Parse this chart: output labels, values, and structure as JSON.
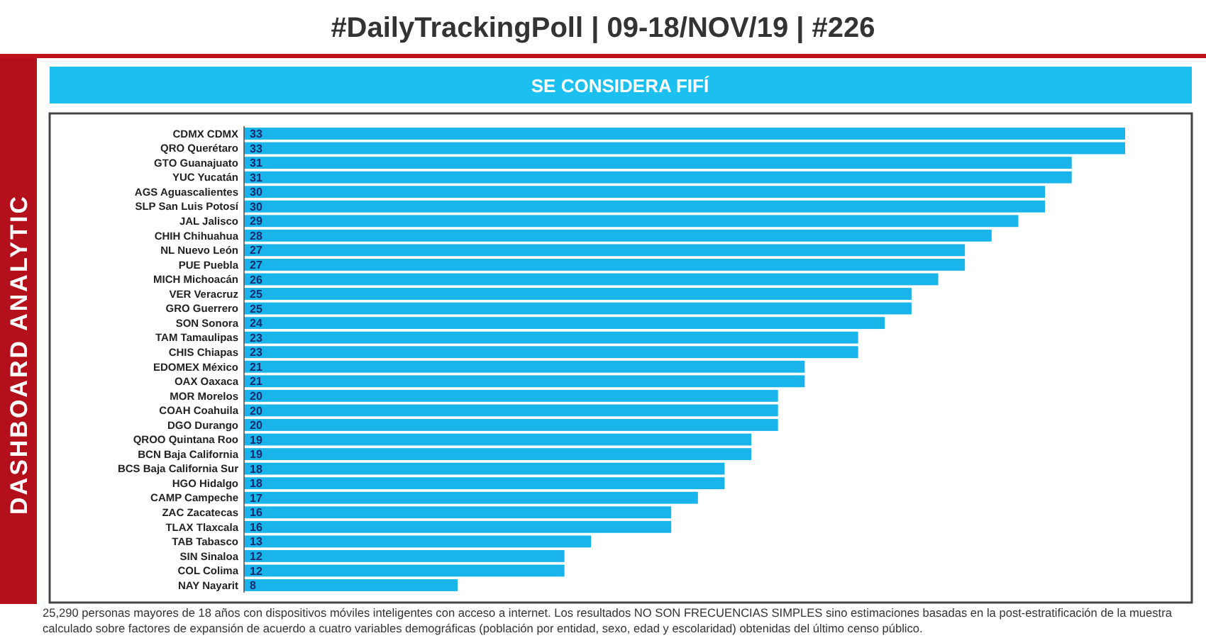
{
  "chart_data": {
    "type": "bar",
    "orientation": "horizontal",
    "title": "SE CONSIDERA FIFÍ",
    "subtitle": "#DailyTrackingPoll | 09-18/NOV/19 | #226",
    "ylabel": "DASHBOARD ANALYTIC",
    "categories": [
      "CDMX CDMX",
      "QRO Querétaro",
      "GTO Guanajuato",
      "YUC Yucatán",
      "AGS Aguascalientes",
      "SLP San Luis Potosí",
      "JAL Jalisco",
      "CHIH Chihuahua",
      "NL Nuevo León",
      "PUE Puebla",
      "MICH Michoacán",
      "VER Veracruz",
      "GRO Guerrero",
      "SON Sonora",
      "TAM Tamaulipas",
      "CHIS Chiapas",
      "EDOMEX México",
      "OAX Oaxaca",
      "MOR Morelos",
      "COAH Coahuila",
      "DGO Durango",
      "QROO Quintana Roo",
      "BCN Baja California",
      "BCS Baja California Sur",
      "HGO Hidalgo",
      "CAMP Campeche",
      "ZAC Zacatecas",
      "TLAX Tlaxcala",
      "TAB Tabasco",
      "SIN Sinaloa",
      "COL Colima",
      "NAY Nayarit"
    ],
    "values": [
      33,
      33,
      31,
      31,
      30,
      30,
      29,
      28,
      27,
      27,
      26,
      25,
      25,
      24,
      23,
      23,
      21,
      21,
      20,
      20,
      20,
      19,
      19,
      18,
      18,
      17,
      16,
      16,
      13,
      12,
      12,
      8
    ],
    "color": "#19b5ea",
    "data_labels": true,
    "annotations": [
      "25,290 personas mayores de 18 años con dispositivos móviles inteligentes con acceso a internet. Los resultados NO SON FRECUENCIAS SIMPLES sino estimaciones basadas en la post-estratificación de la muestra calculado sobre factores de expansión de acuerdo a cuatro variables demográficas (población por entidad, sexo, edad y escolaridad) obtenidas del último censo público."
    ]
  }
}
